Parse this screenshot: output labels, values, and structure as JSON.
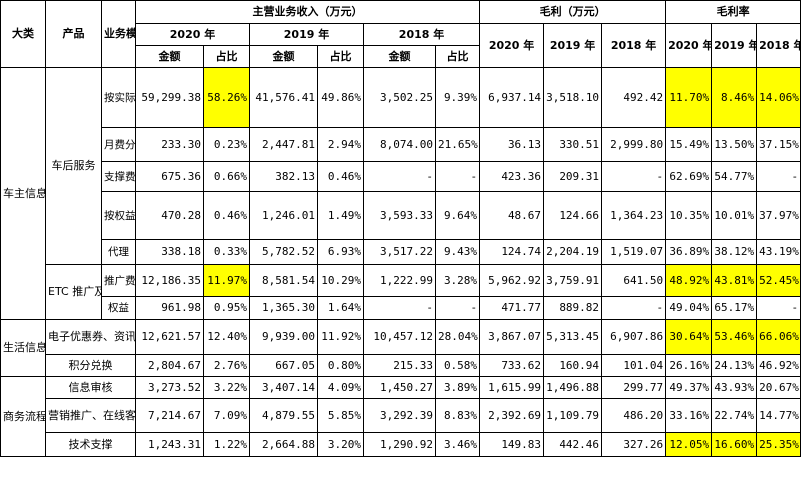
{
  "headers": {
    "category": "大类",
    "product": "产品",
    "mode": "业务模式",
    "revenue_group": "主营业务收入（万元）",
    "gross_group": "毛利（万元）",
    "margin_group": "毛利率",
    "year_2020": "2020 年",
    "year_2019": "2019 年",
    "year_2018": "2018 年",
    "amount": "金额",
    "share": "占比"
  },
  "categories": {
    "car": "车主信息服务",
    "life": "生活信息服务",
    "biz": "商务流程服务"
  },
  "products": {
    "after": "车后服务",
    "etc": "ETC 推广及服务",
    "coupon": "电子优惠券、资讯互提",
    "points": "积分兑换",
    "audit": "信息审核",
    "marketing": "营销推广、在线客服",
    "tech": "技术支撑"
  },
  "rows": [
    {
      "mode": "按实际服务量计价",
      "rev2020": "59,299.38",
      "sh2020": "58.26%",
      "rev2019": "41,576.41",
      "sh2019": "49.86%",
      "rev2018": "3,502.25",
      "sh2018": "9.39%",
      "gp2020": "6,937.14",
      "gp2019": "3,518.10",
      "gp2018": "492.42",
      "m2020": "11.70%",
      "m2019": "8.46%",
      "m2018": "14.06%"
    },
    {
      "mode": "月费分成",
      "rev2020": "233.30",
      "sh2020": "0.23%",
      "rev2019": "2,447.81",
      "sh2019": "2.94%",
      "rev2018": "8,074.00",
      "sh2018": "21.65%",
      "gp2020": "36.13",
      "gp2019": "330.51",
      "gp2018": "2,999.80",
      "m2020": "15.49%",
      "m2019": "13.50%",
      "m2018": "37.15%"
    },
    {
      "mode": "支撑费",
      "rev2020": "675.36",
      "sh2020": "0.66%",
      "rev2019": "382.13",
      "sh2019": "0.46%",
      "rev2018": "-",
      "sh2018": "-",
      "gp2020": "423.36",
      "gp2019": "209.31",
      "gp2018": "-",
      "m2020": "62.69%",
      "m2019": "54.77%",
      "m2018": "-"
    },
    {
      "mode": "按权益计价",
      "rev2020": "470.28",
      "sh2020": "0.46%",
      "rev2019": "1,246.01",
      "sh2019": "1.49%",
      "rev2018": "3,593.33",
      "sh2018": "9.64%",
      "gp2020": "48.67",
      "gp2019": "124.66",
      "gp2018": "1,364.23",
      "m2020": "10.35%",
      "m2019": "10.01%",
      "m2018": "37.97%"
    },
    {
      "mode": "代理",
      "rev2020": "338.18",
      "sh2020": "0.33%",
      "rev2019": "5,782.52",
      "sh2019": "6.93%",
      "rev2018": "3,517.22",
      "sh2018": "9.43%",
      "gp2020": "124.74",
      "gp2019": "2,204.19",
      "gp2018": "1,519.07",
      "m2020": "36.89%",
      "m2019": "38.12%",
      "m2018": "43.19%"
    },
    {
      "mode": "推广费",
      "rev2020": "12,186.35",
      "sh2020": "11.97%",
      "rev2019": "8,581.54",
      "sh2019": "10.29%",
      "rev2018": "1,222.99",
      "sh2018": "3.28%",
      "gp2020": "5,962.92",
      "gp2019": "3,759.91",
      "gp2018": "641.50",
      "m2020": "48.92%",
      "m2019": "43.81%",
      "m2018": "52.45%"
    },
    {
      "mode": "权益",
      "rev2020": "961.98",
      "sh2020": "0.95%",
      "rev2019": "1,365.30",
      "sh2019": "1.64%",
      "rev2018": "-",
      "sh2018": "-",
      "gp2020": "471.77",
      "gp2019": "889.82",
      "gp2018": "-",
      "m2020": "49.04%",
      "m2019": "65.17%",
      "m2018": "-"
    },
    {
      "mode": "",
      "rev2020": "12,621.57",
      "sh2020": "12.40%",
      "rev2019": "9,939.00",
      "sh2019": "11.92%",
      "rev2018": "10,457.12",
      "sh2018": "28.04%",
      "gp2020": "3,867.07",
      "gp2019": "5,313.45",
      "gp2018": "6,907.86",
      "m2020": "30.64%",
      "m2019": "53.46%",
      "m2018": "66.06%"
    },
    {
      "mode": "",
      "rev2020": "2,804.67",
      "sh2020": "2.76%",
      "rev2019": "667.05",
      "sh2019": "0.80%",
      "rev2018": "215.33",
      "sh2018": "0.58%",
      "gp2020": "733.62",
      "gp2019": "160.94",
      "gp2018": "101.04",
      "m2020": "26.16%",
      "m2019": "24.13%",
      "m2018": "46.92%"
    },
    {
      "mode": "",
      "rev2020": "3,273.52",
      "sh2020": "3.22%",
      "rev2019": "3,407.14",
      "sh2019": "4.09%",
      "rev2018": "1,450.27",
      "sh2018": "3.89%",
      "gp2020": "1,615.99",
      "gp2019": "1,496.88",
      "gp2018": "299.77",
      "m2020": "49.37%",
      "m2019": "43.93%",
      "m2018": "20.67%"
    },
    {
      "mode": "",
      "rev2020": "7,214.67",
      "sh2020": "7.09%",
      "rev2019": "4,879.55",
      "sh2019": "5.85%",
      "rev2018": "3,292.39",
      "sh2018": "8.83%",
      "gp2020": "2,392.69",
      "gp2019": "1,109.79",
      "gp2018": "486.20",
      "m2020": "33.16%",
      "m2019": "22.74%",
      "m2018": "14.77%"
    },
    {
      "mode": "",
      "rev2020": "1,243.31",
      "sh2020": "1.22%",
      "rev2019": "2,664.88",
      "sh2019": "3.20%",
      "rev2018": "1,290.92",
      "sh2018": "3.46%",
      "gp2020": "149.83",
      "gp2019": "442.46",
      "gp2018": "327.26",
      "m2020": "12.05%",
      "m2019": "16.60%",
      "m2018": "25.35%"
    }
  ]
}
